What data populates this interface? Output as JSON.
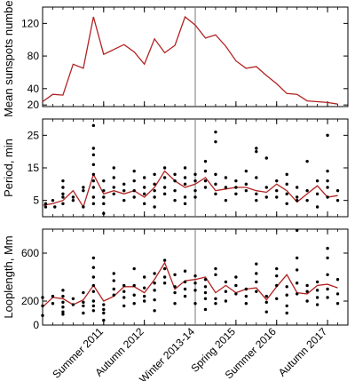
{
  "colors": {
    "line": "#b22222",
    "dots": "#000000",
    "frame": "#000000",
    "divider": "#777777"
  },
  "x_axis": {
    "range": [
      0,
      30
    ],
    "ticks": [
      {
        "x": 6,
        "label": "Summer 2011"
      },
      {
        "x": 10,
        "label": "Autumn 2012"
      },
      {
        "x": 15,
        "label": "Winter 2013-14"
      },
      {
        "x": 19,
        "label": "Spring 2015"
      },
      {
        "x": 23,
        "label": "Summer 2016"
      },
      {
        "x": 28,
        "label": "Autumn 2017"
      }
    ],
    "minor_step": 1
  },
  "chart_data": [
    {
      "type": "line",
      "panel": "top",
      "ylabel": "Mean sunspots number",
      "ylim": [
        18,
        140
      ],
      "yticks": [
        20,
        40,
        80,
        120
      ],
      "divider_x": 15,
      "series": [
        {
          "x": [
            0,
            1,
            2,
            3,
            4,
            5,
            6,
            7,
            8,
            9,
            10,
            11,
            12,
            13,
            14,
            15,
            16,
            17,
            18,
            19,
            20,
            21,
            22,
            23,
            24,
            25,
            26,
            27,
            28,
            29
          ],
          "values": [
            24,
            33,
            32,
            70,
            65,
            128,
            82,
            88,
            94,
            85,
            70,
            101,
            84,
            93,
            128,
            118,
            102,
            106,
            92,
            74,
            65,
            67,
            56,
            46,
            34,
            33,
            25,
            24,
            23,
            21
          ]
        }
      ]
    },
    {
      "type": "scatter",
      "panel": "middle",
      "ylabel": "Period, min",
      "ylim": [
        0,
        30
      ],
      "yticks": [
        5,
        15,
        25
      ],
      "divider_x": 15,
      "series": [
        {
          "kind": "mean-line",
          "x": [
            0,
            1,
            2,
            3,
            4,
            5,
            6,
            7,
            8,
            9,
            10,
            11,
            12,
            13,
            14,
            15,
            16,
            17,
            18,
            19,
            20,
            21,
            22,
            23,
            24,
            25,
            26,
            27,
            28,
            29
          ],
          "values": [
            3.5,
            4,
            5,
            8,
            3,
            13,
            7,
            8,
            7,
            8,
            6,
            9,
            14,
            11,
            9,
            10,
            12,
            8,
            8.5,
            9,
            9,
            8,
            7.5,
            10,
            8,
            4.5,
            7,
            9.5,
            6,
            6.5
          ]
        },
        {
          "kind": "points",
          "points": [
            [
              0.3,
              4
            ],
            [
              0.3,
              3
            ],
            [
              1,
              5
            ],
            [
              1.2,
              3
            ],
            [
              2,
              6
            ],
            [
              2,
              7
            ],
            [
              2,
              9
            ],
            [
              2,
              11
            ],
            [
              2,
              4
            ],
            [
              3,
              5
            ],
            [
              3,
              6
            ],
            [
              4,
              8
            ],
            [
              4,
              9
            ],
            [
              4,
              3
            ],
            [
              5,
              28
            ],
            [
              5,
              21
            ],
            [
              5,
              19
            ],
            [
              5,
              16
            ],
            [
              5,
              13
            ],
            [
              5,
              11
            ],
            [
              5,
              9
            ],
            [
              5,
              6
            ],
            [
              5,
              4
            ],
            [
              6,
              11
            ],
            [
              6,
              8
            ],
            [
              6,
              6
            ],
            [
              6,
              4
            ],
            [
              6,
              1
            ],
            [
              7,
              7
            ],
            [
              7,
              9
            ],
            [
              7,
              12
            ],
            [
              7,
              15
            ],
            [
              8,
              5
            ],
            [
              8,
              8
            ],
            [
              8,
              10
            ],
            [
              9,
              8
            ],
            [
              9,
              6
            ],
            [
              9,
              11
            ],
            [
              9,
              14
            ],
            [
              10,
              7
            ],
            [
              10,
              9
            ],
            [
              10,
              4
            ],
            [
              10,
              12
            ],
            [
              11,
              6
            ],
            [
              11,
              8
            ],
            [
              11,
              10
            ],
            [
              11,
              13
            ],
            [
              11,
              3
            ],
            [
              12,
              15
            ],
            [
              12,
              12
            ],
            [
              12,
              9
            ],
            [
              12,
              7
            ],
            [
              13,
              8
            ],
            [
              13,
              11
            ],
            [
              13,
              13
            ],
            [
              13,
              5
            ],
            [
              14,
              4
            ],
            [
              14,
              6
            ],
            [
              14,
              10
            ],
            [
              14,
              12
            ],
            [
              14,
              15
            ],
            [
              15,
              6
            ],
            [
              15,
              8
            ],
            [
              15,
              11
            ],
            [
              15,
              13
            ],
            [
              16,
              9
            ],
            [
              16,
              11
            ],
            [
              16,
              14
            ],
            [
              16,
              17
            ],
            [
              17,
              26
            ],
            [
              17,
              23
            ],
            [
              17,
              13
            ],
            [
              17,
              10
            ],
            [
              17,
              7
            ],
            [
              18,
              5
            ],
            [
              18,
              9
            ],
            [
              18,
              12
            ],
            [
              19,
              7
            ],
            [
              19,
              9
            ],
            [
              19,
              11
            ],
            [
              20,
              8
            ],
            [
              20,
              10
            ],
            [
              20,
              14
            ],
            [
              21,
              20
            ],
            [
              21,
              21
            ],
            [
              21,
              12
            ],
            [
              21,
              7
            ],
            [
              21,
              5
            ],
            [
              22,
              6
            ],
            [
              22,
              9
            ],
            [
              22,
              18
            ],
            [
              23,
              11
            ],
            [
              23,
              8
            ],
            [
              23,
              6
            ],
            [
              24,
              4
            ],
            [
              24,
              7
            ],
            [
              24,
              10
            ],
            [
              24,
              13
            ],
            [
              25,
              9
            ],
            [
              25,
              6
            ],
            [
              25,
              5
            ],
            [
              26,
              17
            ],
            [
              26,
              8
            ],
            [
              26,
              5
            ],
            [
              27,
              11
            ],
            [
              27,
              7
            ],
            [
              27,
              3
            ],
            [
              28,
              25
            ],
            [
              28,
              14
            ],
            [
              28,
              11
            ],
            [
              28,
              9
            ],
            [
              28,
              6
            ],
            [
              29,
              8
            ],
            [
              29,
              5
            ]
          ]
        }
      ]
    },
    {
      "type": "scatter",
      "panel": "bottom",
      "ylabel": "Looplength, Mm",
      "ylim": [
        0,
        800
      ],
      "yticks": [
        0,
        200,
        600
      ],
      "divider_x": 15,
      "series": [
        {
          "kind": "mean-line",
          "x": [
            0,
            1,
            2,
            3,
            4,
            5,
            6,
            7,
            8,
            9,
            10,
            11,
            12,
            13,
            14,
            15,
            16,
            17,
            18,
            19,
            20,
            21,
            22,
            23,
            24,
            25,
            26,
            27,
            28,
            29
          ],
          "values": [
            150,
            230,
            220,
            170,
            210,
            330,
            200,
            240,
            320,
            320,
            270,
            380,
            520,
            300,
            370,
            380,
            400,
            270,
            330,
            270,
            300,
            310,
            210,
            320,
            420,
            270,
            260,
            330,
            340,
            310
          ]
        },
        {
          "kind": "points",
          "points": [
            [
              0,
              80
            ],
            [
              0,
              160
            ],
            [
              0,
              230
            ],
            [
              1,
              180
            ],
            [
              1,
              240
            ],
            [
              2,
              90
            ],
            [
              2,
              150
            ],
            [
              2,
              190
            ],
            [
              2,
              240
            ],
            [
              2,
              290
            ],
            [
              2,
              110
            ],
            [
              3,
              170
            ],
            [
              3,
              220
            ],
            [
              4,
              100
            ],
            [
              4,
              160
            ],
            [
              4,
              190
            ],
            [
              4,
              270
            ],
            [
              5,
              560
            ],
            [
              5,
              480
            ],
            [
              5,
              400
            ],
            [
              5,
              330
            ],
            [
              5,
              280
            ],
            [
              5,
              200
            ],
            [
              5,
              160
            ],
            [
              5,
              120
            ],
            [
              6,
              40
            ],
            [
              6,
              100
            ],
            [
              6,
              130
            ],
            [
              6,
              170
            ],
            [
              7,
              250
            ],
            [
              7,
              300
            ],
            [
              7,
              370
            ],
            [
              7,
              430
            ],
            [
              8,
              160
            ],
            [
              8,
              230
            ],
            [
              8,
              280
            ],
            [
              8,
              330
            ],
            [
              9,
              180
            ],
            [
              9,
              250
            ],
            [
              9,
              330
            ],
            [
              9,
              470
            ],
            [
              10,
              200
            ],
            [
              10,
              240
            ],
            [
              10,
              310
            ],
            [
              10,
              400
            ],
            [
              11,
              210
            ],
            [
              11,
              290
            ],
            [
              11,
              350
            ],
            [
              11,
              430
            ],
            [
              11,
              120
            ],
            [
              12,
              470
            ],
            [
              12,
              540
            ],
            [
              12,
              400
            ],
            [
              12,
              350
            ],
            [
              13,
              180
            ],
            [
              13,
              270
            ],
            [
              13,
              320
            ],
            [
              13,
              420
            ],
            [
              14,
              240
            ],
            [
              14,
              300
            ],
            [
              14,
              360
            ],
            [
              14,
              450
            ],
            [
              15,
              290
            ],
            [
              15,
              350
            ],
            [
              15,
              410
            ],
            [
              15,
              180
            ],
            [
              16,
              130
            ],
            [
              16,
              220
            ],
            [
              16,
              270
            ],
            [
              16,
              320
            ],
            [
              16,
              380
            ],
            [
              17,
              420
            ],
            [
              17,
              470
            ],
            [
              17,
              220
            ],
            [
              17,
              180
            ],
            [
              18,
              280
            ],
            [
              18,
              360
            ],
            [
              18,
              200
            ],
            [
              19,
              260
            ],
            [
              19,
              330
            ],
            [
              19,
              400
            ],
            [
              20,
              180
            ],
            [
              20,
              240
            ],
            [
              20,
              300
            ],
            [
              21,
              280
            ],
            [
              21,
              360
            ],
            [
              21,
              430
            ],
            [
              21,
              510
            ],
            [
              22,
              110
            ],
            [
              22,
              190
            ],
            [
              22,
              240
            ],
            [
              23,
              330
            ],
            [
              23,
              410
            ],
            [
              23,
              470
            ],
            [
              23,
              220
            ],
            [
              24,
              100
            ],
            [
              24,
              160
            ],
            [
              24,
              250
            ],
            [
              24,
              320
            ],
            [
              25,
              790
            ],
            [
              25,
              560
            ],
            [
              25,
              460
            ],
            [
              25,
              350
            ],
            [
              25,
              260
            ],
            [
              26,
              200
            ],
            [
              26,
              280
            ],
            [
              26,
              330
            ],
            [
              27,
              170
            ],
            [
              27,
              230
            ],
            [
              27,
              290
            ],
            [
              27,
              360
            ],
            [
              28,
              640
            ],
            [
              28,
              560
            ],
            [
              28,
              420
            ],
            [
              28,
              300
            ],
            [
              28,
              230
            ],
            [
              29,
              180
            ],
            [
              29,
              260
            ],
            [
              29,
              380
            ]
          ]
        }
      ]
    }
  ]
}
